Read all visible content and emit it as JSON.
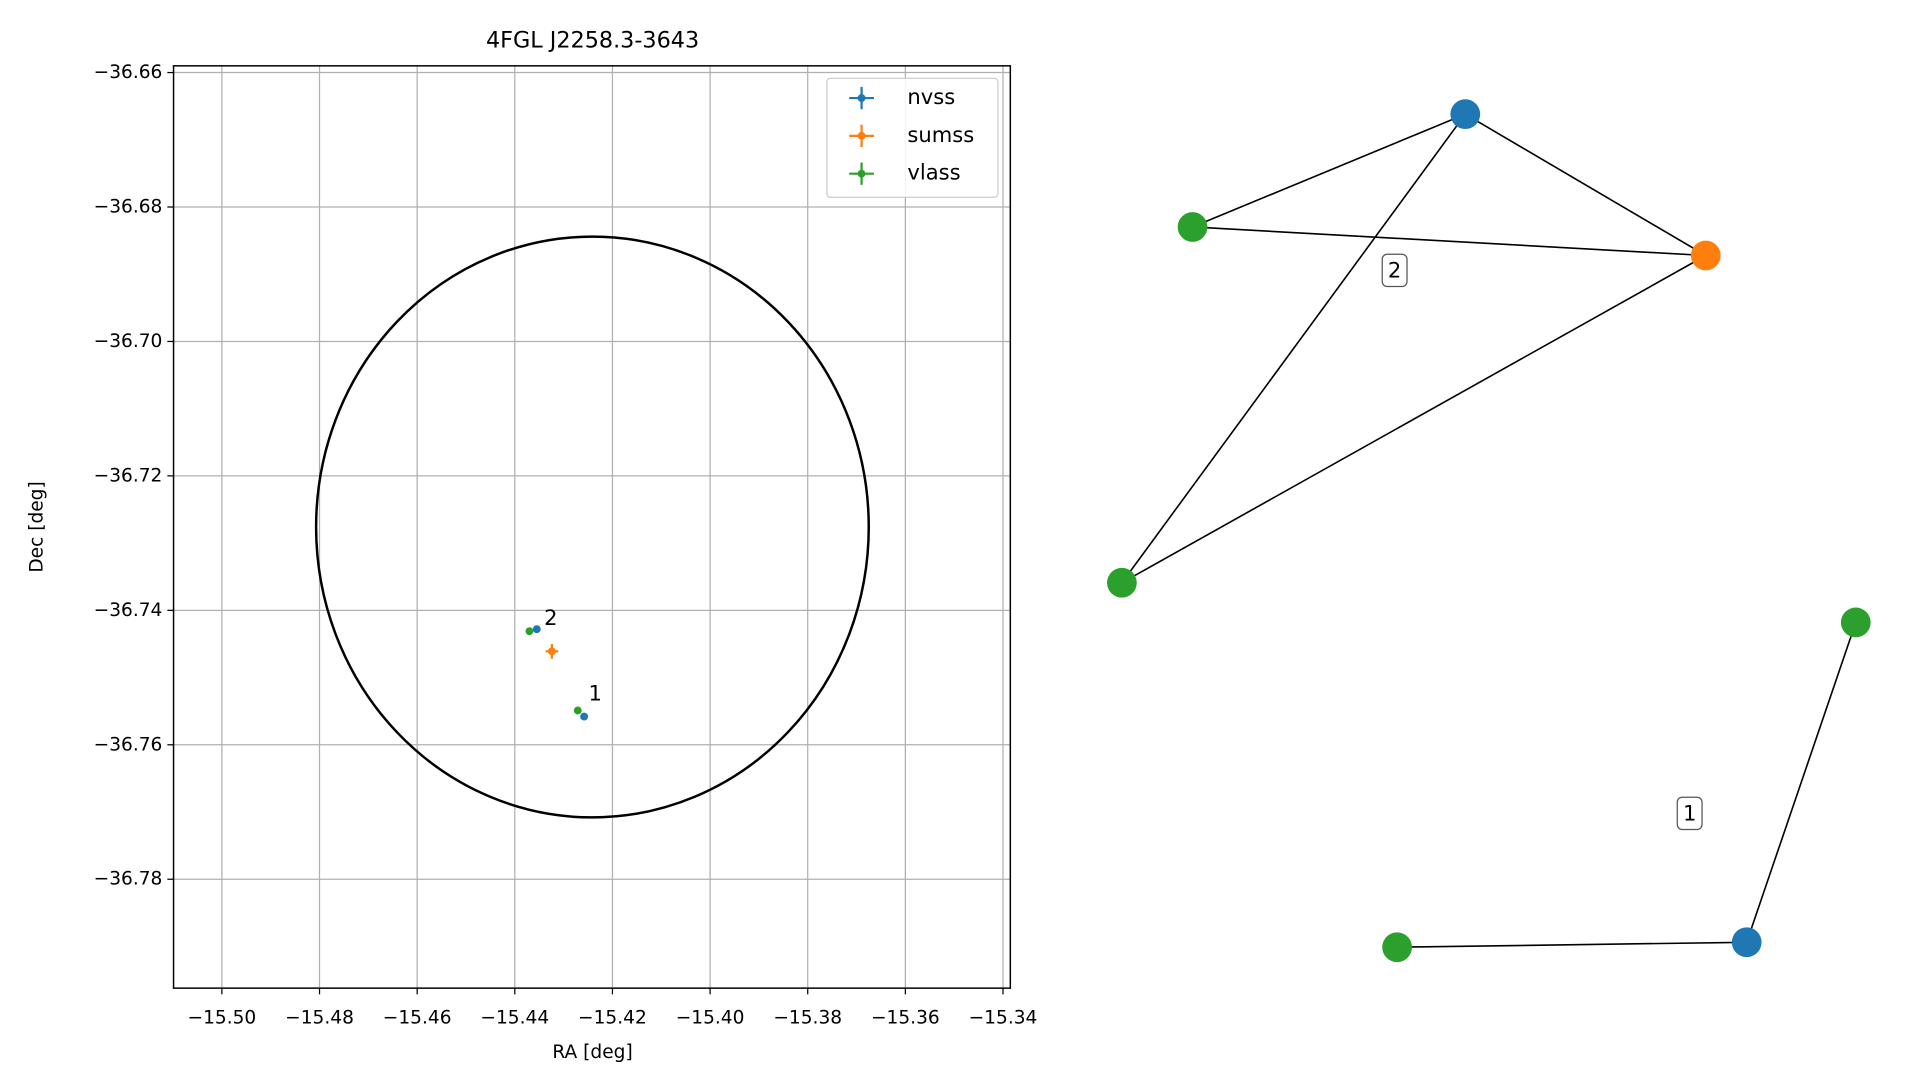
{
  "chart_data": {
    "type": "scatter",
    "title": "4FGL J2258.3-3643",
    "x_label": "RA [deg]",
    "y_label": "Dec [deg]",
    "xlim": [
      -15.5099,
      -15.3385
    ],
    "ylim": [
      -36.7962,
      -36.659
    ],
    "xticks": [
      {
        "value": -15.5,
        "label": "−15.50"
      },
      {
        "value": -15.48,
        "label": "−15.48"
      },
      {
        "value": -15.46,
        "label": "−15.46"
      },
      {
        "value": -15.44,
        "label": "−15.44"
      },
      {
        "value": -15.42,
        "label": "−15.42"
      },
      {
        "value": -15.4,
        "label": "−15.40"
      },
      {
        "value": -15.38,
        "label": "−15.38"
      },
      {
        "value": -15.36,
        "label": "−15.36"
      },
      {
        "value": -15.34,
        "label": "−15.34"
      }
    ],
    "yticks": [
      {
        "value": -36.66,
        "label": "−36.66"
      },
      {
        "value": -36.68,
        "label": "−36.68"
      },
      {
        "value": -36.7,
        "label": "−36.70"
      },
      {
        "value": -36.72,
        "label": "−36.72"
      },
      {
        "value": -36.74,
        "label": "−36.74"
      },
      {
        "value": -36.76,
        "label": "−36.76"
      },
      {
        "value": -36.78,
        "label": "−36.78"
      }
    ],
    "grid": true,
    "legend": "upper right",
    "series": [
      {
        "name": "nvss",
        "color": "#1f77b4",
        "x": [
          -15.4355,
          -15.4258
        ],
        "values": [
          -36.7428,
          -36.7558
        ],
        "xerr": [
          0.0004,
          0.0004
        ],
        "yerr": [
          0.0003,
          0.0003
        ]
      },
      {
        "name": "sumss",
        "color": "#ff7f0e",
        "x": [
          -15.4324
        ],
        "values": [
          -36.7461
        ],
        "xerr": [
          0.0013
        ],
        "yerr": [
          0.0011
        ]
      },
      {
        "name": "vlass",
        "color": "#2ca02c",
        "x": [
          -15.437,
          -15.4271
        ],
        "values": [
          -36.7431,
          -36.7549
        ],
        "xerr": [
          0.0002,
          0.0002
        ],
        "yerr": [
          0.0002,
          0.0002
        ]
      }
    ],
    "circle": {
      "center_x": -15.4241,
      "center_y": -36.7276,
      "radius_x": 0.0566,
      "radius_y": 0.0432,
      "color": "#000000"
    },
    "annotations": [
      {
        "text": "2",
        "x": -15.434,
        "y": -36.7413
      },
      {
        "text": "1",
        "x": -15.4249,
        "y": -36.7525
      }
    ],
    "graph": {
      "nodes": [
        {
          "catalog": "nvss"
        },
        {
          "catalog": "vlass"
        },
        {
          "catalog": "sumss"
        },
        {
          "catalog": "vlass"
        },
        {
          "catalog": "vlass"
        },
        {
          "catalog": "nvss"
        },
        {
          "catalog": "vlass"
        }
      ],
      "edges": [
        [
          0,
          1
        ],
        [
          0,
          2
        ],
        [
          0,
          3
        ],
        [
          1,
          2
        ],
        [
          2,
          3
        ],
        [
          4,
          5
        ],
        [
          5,
          6
        ]
      ],
      "labels": [
        "2",
        "1"
      ]
    }
  }
}
